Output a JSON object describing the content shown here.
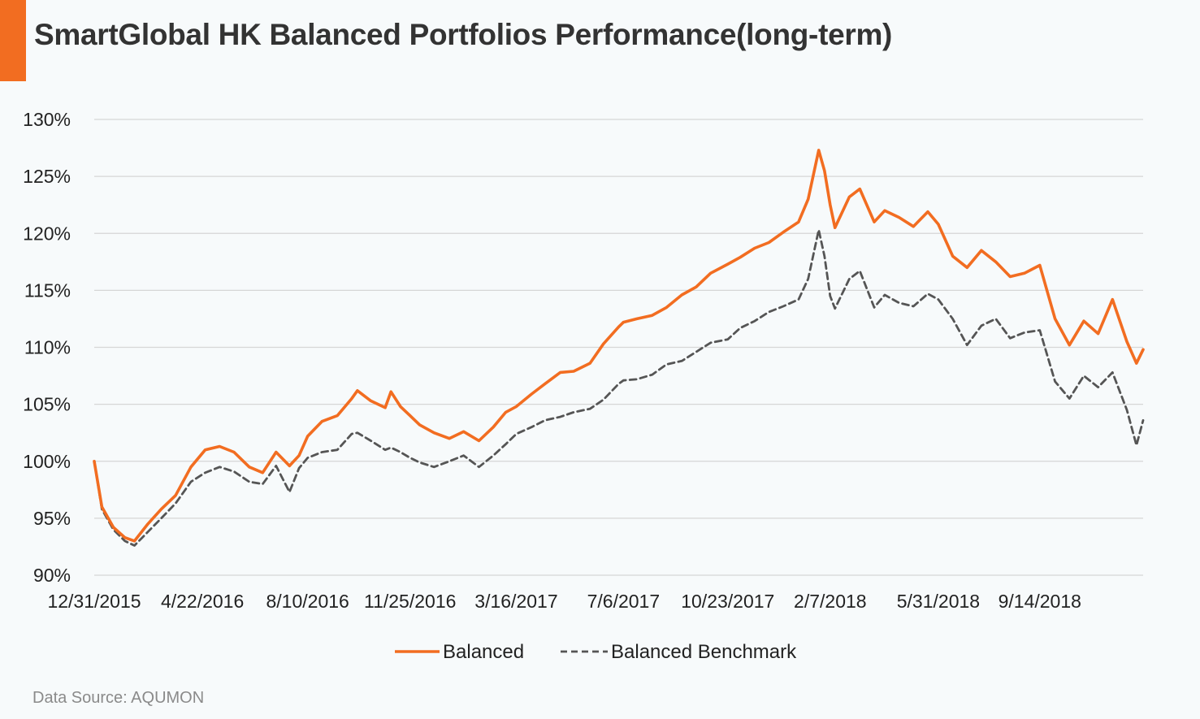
{
  "title": "SmartGlobal HK Balanced Portfolios Performance(long-term)",
  "source": "Data Source: AQUMON",
  "colors": {
    "accent": "#f26d21",
    "balanced": "#f26d21",
    "benchmark": "#555555",
    "grid": "#d6d6d6",
    "text": "#222222"
  },
  "chart_data": {
    "type": "line",
    "title": "SmartGlobal HK Balanced Portfolios Performance(long-term)",
    "xlabel": "",
    "ylabel": "",
    "ylim": [
      90,
      130
    ],
    "ytick_labels": [
      "90%",
      "95%",
      "100%",
      "105%",
      "110%",
      "115%",
      "120%",
      "125%",
      "130%"
    ],
    "ytick_values": [
      90,
      95,
      100,
      105,
      110,
      115,
      120,
      125,
      130
    ],
    "x_start": "12/31/2015",
    "x_end": "12/31/2018",
    "xtick_labels": [
      "12/31/2015",
      "4/22/2016",
      "8/10/2016",
      "11/25/2016",
      "3/16/2017",
      "7/6/2017",
      "10/23/2017",
      "2/7/2018",
      "5/31/2018",
      "9/14/2018"
    ],
    "grid": true,
    "legend_position": "bottom-center",
    "series": [
      {
        "name": "Balanced",
        "style": "solid",
        "points": [
          [
            "12/31/2015",
            100.0
          ],
          [
            "1/8/2016",
            96.0
          ],
          [
            "1/20/2016",
            94.2
          ],
          [
            "2/1/2016",
            93.3
          ],
          [
            "2/11/2016",
            93.0
          ],
          [
            "2/25/2016",
            94.5
          ],
          [
            "3/10/2016",
            95.8
          ],
          [
            "3/25/2016",
            97.0
          ],
          [
            "4/10/2016",
            99.5
          ],
          [
            "4/25/2016",
            101.0
          ],
          [
            "5/10/2016",
            101.3
          ],
          [
            "5/25/2016",
            100.8
          ],
          [
            "6/10/2016",
            99.5
          ],
          [
            "6/24/2016",
            99.0
          ],
          [
            "7/8/2016",
            100.8
          ],
          [
            "7/22/2016",
            99.6
          ],
          [
            "8/1/2016",
            100.5
          ],
          [
            "8/10/2016",
            102.2
          ],
          [
            "8/25/2016",
            103.5
          ],
          [
            "9/10/2016",
            104.0
          ],
          [
            "9/25/2016",
            105.5
          ],
          [
            "10/1/2016",
            106.2
          ],
          [
            "10/15/2016",
            105.3
          ],
          [
            "10/30/2016",
            104.7
          ],
          [
            "11/5/2016",
            106.1
          ],
          [
            "11/15/2016",
            104.8
          ],
          [
            "11/25/2016",
            104.0
          ],
          [
            "12/5/2016",
            103.2
          ],
          [
            "12/20/2016",
            102.5
          ],
          [
            "1/5/2017",
            102.0
          ],
          [
            "1/20/2017",
            102.6
          ],
          [
            "2/5/2017",
            101.8
          ],
          [
            "2/20/2017",
            103.0
          ],
          [
            "3/5/2017",
            104.3
          ],
          [
            "3/16/2017",
            104.8
          ],
          [
            "4/1/2017",
            105.9
          ],
          [
            "4/15/2017",
            106.8
          ],
          [
            "5/1/2017",
            107.8
          ],
          [
            "5/15/2017",
            107.9
          ],
          [
            "6/1/2017",
            108.6
          ],
          [
            "6/15/2017",
            110.3
          ],
          [
            "7/1/2017",
            111.8
          ],
          [
            "7/6/2017",
            112.2
          ],
          [
            "7/20/2017",
            112.5
          ],
          [
            "8/5/2017",
            112.8
          ],
          [
            "8/20/2017",
            113.5
          ],
          [
            "9/5/2017",
            114.6
          ],
          [
            "9/20/2017",
            115.3
          ],
          [
            "10/5/2017",
            116.5
          ],
          [
            "10/23/2017",
            117.3
          ],
          [
            "11/5/2017",
            117.9
          ],
          [
            "11/20/2017",
            118.7
          ],
          [
            "12/5/2017",
            119.2
          ],
          [
            "12/20/2017",
            120.1
          ],
          [
            "1/5/2018",
            121.0
          ],
          [
            "1/15/2018",
            123.0
          ],
          [
            "1/26/2018",
            127.3
          ],
          [
            "2/1/2018",
            125.5
          ],
          [
            "2/7/2018",
            122.5
          ],
          [
            "2/12/2018",
            120.5
          ],
          [
            "2/27/2018",
            123.2
          ],
          [
            "3/10/2018",
            123.9
          ],
          [
            "3/25/2018",
            121.0
          ],
          [
            "4/5/2018",
            122.0
          ],
          [
            "4/20/2018",
            121.4
          ],
          [
            "5/5/2018",
            120.6
          ],
          [
            "5/20/2018",
            121.9
          ],
          [
            "5/31/2018",
            120.8
          ],
          [
            "6/15/2018",
            118.0
          ],
          [
            "6/30/2018",
            117.0
          ],
          [
            "7/15/2018",
            118.5
          ],
          [
            "7/30/2018",
            117.5
          ],
          [
            "8/14/2018",
            116.2
          ],
          [
            "8/29/2018",
            116.5
          ],
          [
            "9/14/2018",
            117.2
          ],
          [
            "9/30/2018",
            112.5
          ],
          [
            "10/15/2018",
            110.2
          ],
          [
            "10/30/2018",
            112.3
          ],
          [
            "11/14/2018",
            111.2
          ],
          [
            "11/29/2018",
            114.2
          ],
          [
            "12/14/2018",
            110.5
          ],
          [
            "12/24/2018",
            108.6
          ],
          [
            "12/31/2018",
            109.8
          ]
        ]
      },
      {
        "name": "Balanced Benchmark",
        "style": "dashed",
        "points": [
          [
            "12/31/2015",
            100.0
          ],
          [
            "1/8/2016",
            95.8
          ],
          [
            "1/20/2016",
            94.0
          ],
          [
            "2/1/2016",
            93.0
          ],
          [
            "2/11/2016",
            92.6
          ],
          [
            "2/25/2016",
            93.8
          ],
          [
            "3/10/2016",
            95.0
          ],
          [
            "3/25/2016",
            96.3
          ],
          [
            "4/10/2016",
            98.2
          ],
          [
            "4/25/2016",
            99.0
          ],
          [
            "5/10/2016",
            99.5
          ],
          [
            "5/25/2016",
            99.1
          ],
          [
            "6/10/2016",
            98.2
          ],
          [
            "6/24/2016",
            98.0
          ],
          [
            "7/8/2016",
            99.6
          ],
          [
            "7/22/2016",
            97.3
          ],
          [
            "8/1/2016",
            99.4
          ],
          [
            "8/10/2016",
            100.3
          ],
          [
            "8/25/2016",
            100.8
          ],
          [
            "9/10/2016",
            101.0
          ],
          [
            "9/25/2016",
            102.4
          ],
          [
            "10/1/2016",
            102.5
          ],
          [
            "10/15/2016",
            101.8
          ],
          [
            "10/30/2016",
            101.0
          ],
          [
            "11/5/2016",
            101.2
          ],
          [
            "11/15/2016",
            100.8
          ],
          [
            "11/25/2016",
            100.3
          ],
          [
            "12/5/2016",
            99.9
          ],
          [
            "12/20/2016",
            99.5
          ],
          [
            "1/5/2017",
            100.0
          ],
          [
            "1/20/2017",
            100.5
          ],
          [
            "2/5/2017",
            99.5
          ],
          [
            "2/20/2017",
            100.5
          ],
          [
            "3/5/2017",
            101.5
          ],
          [
            "3/16/2017",
            102.4
          ],
          [
            "4/1/2017",
            103.0
          ],
          [
            "4/15/2017",
            103.6
          ],
          [
            "5/1/2017",
            103.9
          ],
          [
            "5/15/2017",
            104.3
          ],
          [
            "6/1/2017",
            104.6
          ],
          [
            "6/15/2017",
            105.4
          ],
          [
            "7/1/2017",
            106.8
          ],
          [
            "7/6/2017",
            107.1
          ],
          [
            "7/20/2017",
            107.2
          ],
          [
            "8/5/2017",
            107.6
          ],
          [
            "8/20/2017",
            108.5
          ],
          [
            "9/5/2017",
            108.8
          ],
          [
            "9/20/2017",
            109.6
          ],
          [
            "10/5/2017",
            110.4
          ],
          [
            "10/23/2017",
            110.7
          ],
          [
            "11/5/2017",
            111.7
          ],
          [
            "11/20/2017",
            112.3
          ],
          [
            "12/5/2017",
            113.1
          ],
          [
            "12/20/2017",
            113.6
          ],
          [
            "1/5/2018",
            114.2
          ],
          [
            "1/15/2018",
            116.0
          ],
          [
            "1/26/2018",
            120.3
          ],
          [
            "2/1/2018",
            118.0
          ],
          [
            "2/7/2018",
            114.5
          ],
          [
            "2/12/2018",
            113.4
          ],
          [
            "2/27/2018",
            116.0
          ],
          [
            "3/10/2018",
            116.7
          ],
          [
            "3/25/2018",
            113.5
          ],
          [
            "4/5/2018",
            114.6
          ],
          [
            "4/20/2018",
            113.9
          ],
          [
            "5/5/2018",
            113.6
          ],
          [
            "5/20/2018",
            114.7
          ],
          [
            "5/31/2018",
            114.2
          ],
          [
            "6/15/2018",
            112.5
          ],
          [
            "6/30/2018",
            110.2
          ],
          [
            "7/15/2018",
            111.9
          ],
          [
            "7/30/2018",
            112.5
          ],
          [
            "8/14/2018",
            110.8
          ],
          [
            "8/29/2018",
            111.3
          ],
          [
            "9/14/2018",
            111.5
          ],
          [
            "9/30/2018",
            107.0
          ],
          [
            "10/15/2018",
            105.5
          ],
          [
            "10/30/2018",
            107.5
          ],
          [
            "11/14/2018",
            106.5
          ],
          [
            "11/29/2018",
            107.8
          ],
          [
            "12/14/2018",
            104.5
          ],
          [
            "12/24/2018",
            101.4
          ],
          [
            "12/31/2018",
            103.6
          ]
        ]
      }
    ]
  }
}
